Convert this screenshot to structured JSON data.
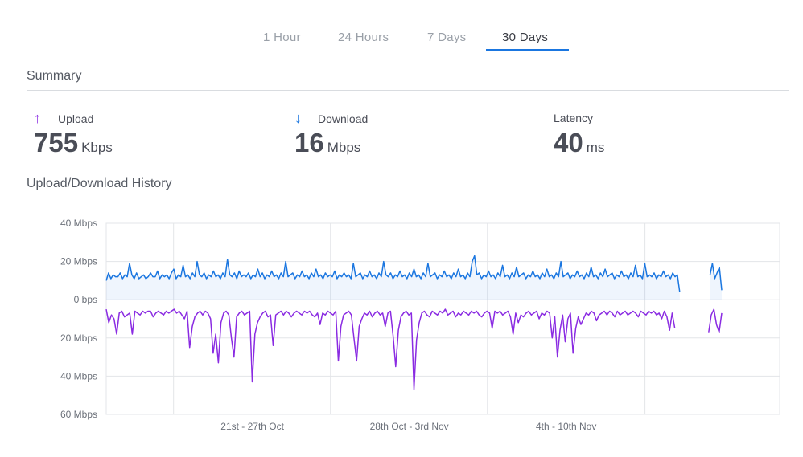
{
  "tabs": [
    {
      "label": "1 Hour",
      "active": false
    },
    {
      "label": "24 Hours",
      "active": false
    },
    {
      "label": "7 Days",
      "active": false
    },
    {
      "label": "30 Days",
      "active": true
    }
  ],
  "summary": {
    "title": "Summary",
    "upload": {
      "label": "Upload",
      "value": "755",
      "unit": "Kbps",
      "icon": "arrow-up-icon",
      "color": "#8a2be2"
    },
    "download": {
      "label": "Download",
      "value": "16",
      "unit": "Mbps",
      "icon": "arrow-down-icon",
      "color": "#1a76e0"
    },
    "latency": {
      "label": "Latency",
      "value": "40",
      "unit": "ms"
    }
  },
  "history": {
    "title": "Upload/Download History"
  },
  "chart_data": {
    "type": "line",
    "y_tick_labels": [
      "40 Mbps",
      "20 Mbps",
      "0 bps",
      "20 Mbps",
      "40 Mbps",
      "60 Mbps"
    ],
    "y_ticks": [
      40,
      20,
      0,
      -20,
      -40,
      -60
    ],
    "ylim": [
      -60,
      40
    ],
    "x_tick_labels": [
      "21st - 27th Oct",
      "28th Oct - 3rd Nov",
      "4th - 10th Nov"
    ],
    "grid": true,
    "colors": {
      "download": "#1a76e0",
      "upload": "#8a2be2"
    },
    "series": [
      {
        "key": "download",
        "values": [
          10,
          14,
          11,
          13,
          12,
          12,
          14,
          11,
          13,
          12,
          19,
          13,
          11,
          14,
          11,
          12,
          13,
          11,
          12,
          14,
          12,
          12,
          15,
          11,
          13,
          12,
          13,
          11,
          14,
          16,
          11,
          13,
          12,
          18,
          12,
          13,
          11,
          14,
          12,
          20,
          13,
          12,
          14,
          11,
          13,
          12,
          15,
          12,
          13,
          11,
          14,
          12,
          21,
          13,
          12,
          14,
          11,
          15,
          12,
          13,
          12,
          14,
          11,
          13,
          12,
          16,
          12,
          14,
          11,
          13,
          12,
          15,
          12,
          13,
          11,
          14,
          12,
          20,
          12,
          13,
          14,
          11,
          13,
          12,
          15,
          12,
          13,
          11,
          14,
          12,
          16,
          12,
          13,
          11,
          14,
          12,
          13,
          12,
          15,
          11,
          13,
          12,
          14,
          12,
          13,
          11,
          19,
          12,
          13,
          14,
          11,
          13,
          12,
          15,
          12,
          13,
          11,
          14,
          12,
          20,
          13,
          12,
          14,
          11,
          13,
          12,
          15,
          12,
          13,
          11,
          14,
          12,
          16,
          12,
          13,
          11,
          14,
          12,
          19,
          12,
          13,
          14,
          11,
          13,
          12,
          15,
          12,
          13,
          11,
          14,
          12,
          16,
          12,
          13,
          11,
          14,
          12,
          20,
          23,
          13,
          14,
          11,
          13,
          12,
          15,
          12,
          13,
          11,
          14,
          12,
          18,
          12,
          13,
          11,
          14,
          12,
          17,
          12,
          13,
          14,
          11,
          13,
          12,
          15,
          12,
          13,
          11,
          14,
          12,
          16,
          12,
          13,
          11,
          14,
          12,
          20,
          12,
          13,
          14,
          11,
          13,
          12,
          15,
          12,
          13,
          11,
          14,
          12,
          17,
          12,
          13,
          11,
          14,
          12,
          16,
          12,
          13,
          14,
          11,
          13,
          12,
          15,
          12,
          13,
          11,
          14,
          12,
          18,
          12,
          13,
          11,
          19,
          12,
          13,
          12,
          14,
          11,
          13,
          12,
          15,
          12,
          13,
          11,
          14,
          12,
          13,
          4,
          null,
          null,
          null,
          null,
          null,
          null,
          null,
          null,
          null,
          null,
          null,
          null,
          13,
          19,
          11,
          14,
          17,
          5
        ]
      },
      {
        "key": "upload",
        "values": [
          -5,
          -12,
          -8,
          -10,
          -18,
          -7,
          -6,
          -9,
          -8,
          -7,
          -18,
          -6,
          -7,
          -8,
          -6,
          -7,
          -6,
          -6,
          -9,
          -7,
          -6,
          -7,
          -8,
          -6,
          -7,
          -6,
          -5,
          -7,
          -6,
          -8,
          -10,
          -6,
          -25,
          -14,
          -9,
          -7,
          -6,
          -8,
          -6,
          -7,
          -10,
          -28,
          -18,
          -33,
          -12,
          -7,
          -6,
          -8,
          -20,
          -30,
          -9,
          -7,
          -6,
          -8,
          -7,
          -6,
          -43,
          -18,
          -12,
          -9,
          -7,
          -6,
          -9,
          -8,
          -24,
          -8,
          -7,
          -6,
          -8,
          -6,
          -7,
          -9,
          -7,
          -6,
          -7,
          -8,
          -6,
          -7,
          -6,
          -8,
          -9,
          -7,
          -13,
          -7,
          -8,
          -6,
          -7,
          -8,
          -6,
          -32,
          -14,
          -8,
          -7,
          -6,
          -8,
          -20,
          -32,
          -14,
          -10,
          -7,
          -8,
          -6,
          -9,
          -7,
          -6,
          -8,
          -7,
          -14,
          -7,
          -6,
          -19,
          -35,
          -16,
          -9,
          -7,
          -6,
          -8,
          -7,
          -47,
          -21,
          -12,
          -7,
          -6,
          -8,
          -9,
          -6,
          -7,
          -8,
          -6,
          -7,
          -5,
          -8,
          -7,
          -6,
          -9,
          -7,
          -8,
          -6,
          -7,
          -8,
          -6,
          -7,
          -6,
          -8,
          -9,
          -7,
          -6,
          -7,
          -15,
          -6,
          -7,
          -6,
          -8,
          -7,
          -6,
          -9,
          -18,
          -7,
          -12,
          -8,
          -9,
          -7,
          -6,
          -8,
          -7,
          -6,
          -10,
          -7,
          -8,
          -6,
          -7,
          -20,
          -9,
          -30,
          -16,
          -8,
          -22,
          -10,
          -7,
          -28,
          -15,
          -9,
          -13,
          -10,
          -7,
          -8,
          -6,
          -7,
          -11,
          -8,
          -7,
          -6,
          -8,
          -6,
          -7,
          -9,
          -6,
          -8,
          -7,
          -6,
          -8,
          -7,
          -6,
          -7,
          -9,
          -6,
          -7,
          -8,
          -6,
          -7,
          -6,
          -8,
          -7,
          -10,
          -6,
          -9,
          -16,
          -7,
          -15,
          null,
          null,
          null,
          null,
          null,
          null,
          null,
          null,
          null,
          null,
          null,
          null,
          -17,
          -8,
          -5,
          -13,
          -17,
          -7
        ]
      }
    ]
  }
}
